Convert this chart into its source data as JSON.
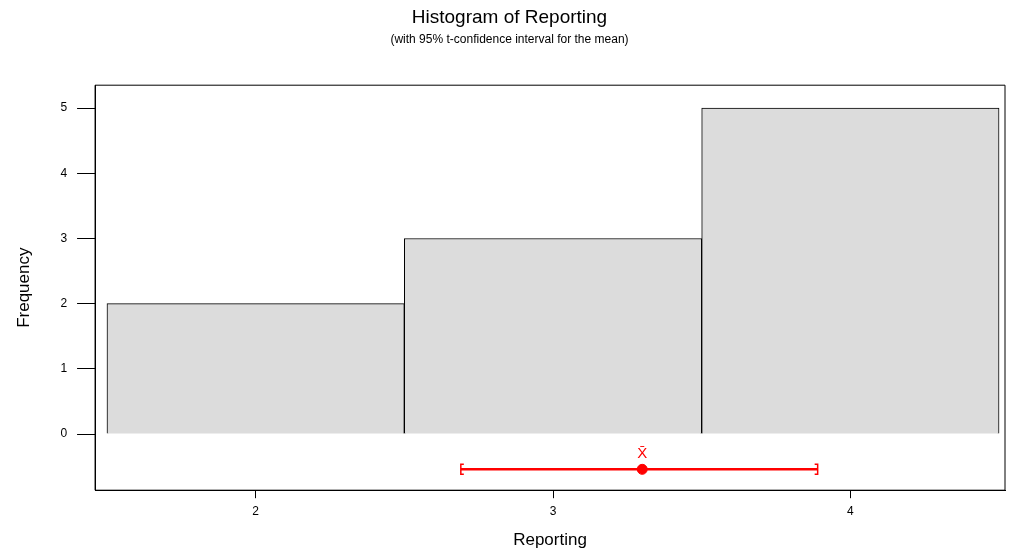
{
  "chart_data": {
    "type": "histogram",
    "title": "Histogram of Reporting",
    "subtitle": "(with 95% t-confidence interval for the mean)",
    "xlabel": "Reporting",
    "ylabel": "Frequency",
    "bins": [
      1.5,
      2.5,
      3.5,
      4.5
    ],
    "values": [
      2,
      3,
      5
    ],
    "color": "#dcdcdc",
    "series": [
      {
        "type": "scatter",
        "x": [
          3.3
        ],
        "values": [
          -0.54
        ],
        "xerrors": [
          [
            2.69,
            3.89
          ]
        ],
        "color": "#ff0000"
      }
    ],
    "annotations": [
      {
        "text": "X̄",
        "x": 3.3,
        "y": -0.54
      }
    ],
    "xlim": [
      1.46,
      4.52
    ],
    "ylim": [
      -0.86,
      5.35
    ],
    "xticks": [
      2,
      3,
      4
    ],
    "yticks": [
      0,
      1,
      2,
      3,
      4,
      5
    ],
    "grid": false,
    "legend": false
  }
}
